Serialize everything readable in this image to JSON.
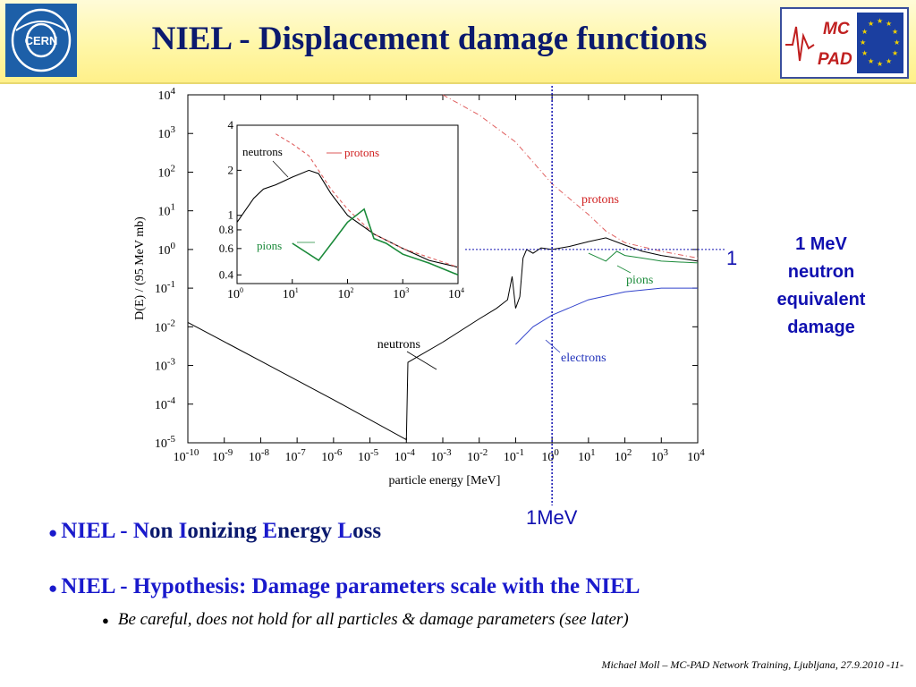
{
  "title": "NIEL - Displacement damage functions",
  "logos": {
    "cern": "CERN",
    "mc": "MC",
    "pad": "PAD"
  },
  "colors": {
    "title": "#0b1a6e",
    "accent": "#1a1acc",
    "neutrons": "#000000",
    "protons": "#e06060",
    "pions": "#1b8a3a",
    "electrons": "#3344cc",
    "marker": "#1010b0"
  },
  "chart_data": [
    {
      "type": "line",
      "xlabel": "particle energy [MeV]",
      "ylabel": "D(E) / (95 MeV mb)",
      "x_scale": "log",
      "y_scale": "log",
      "xlim": [
        1e-10,
        10000.0
      ],
      "ylim": [
        1e-05,
        10000.0
      ],
      "x_ticks": [
        "-10",
        "-9",
        "-8",
        "-7",
        "-6",
        "-5",
        "-4",
        "-3",
        "-2",
        "-1",
        "0",
        "1",
        "2",
        "3",
        "4"
      ],
      "y_ticks": [
        "4",
        "3",
        "2",
        "1",
        "0",
        "-1",
        "-2",
        "-3",
        "-4",
        "-5"
      ],
      "tick_base": "10",
      "series": [
        {
          "name": "neutrons",
          "points": [
            [
              1e-10,
              0.013
            ],
            [
              1e-08,
              0.0013
            ],
            [
              1e-06,
              0.00013
            ],
            [
              0.0001,
              1.2e-05
            ],
            [
              0.00011,
              0.0012
            ],
            [
              0.001,
              0.004
            ],
            [
              0.01,
              0.016
            ],
            [
              0.03,
              0.03
            ],
            [
              0.06,
              0.05
            ],
            [
              0.08,
              0.2
            ],
            [
              0.1,
              0.03
            ],
            [
              0.13,
              0.06
            ],
            [
              0.16,
              0.6
            ],
            [
              0.2,
              1
            ],
            [
              0.3,
              0.8
            ],
            [
              0.5,
              1.1
            ],
            [
              1,
              1
            ],
            [
              3,
              1.2
            ],
            [
              10,
              1.6
            ],
            [
              30,
              2
            ],
            [
              100,
              1.3
            ],
            [
              300,
              0.9
            ],
            [
              1000,
              0.7
            ],
            [
              10000,
              0.5
            ]
          ]
        },
        {
          "name": "protons",
          "points": [
            [
              0.001,
              10000.0
            ],
            [
              0.01,
              3000
            ],
            [
              0.1,
              600
            ],
            [
              1,
              50
            ],
            [
              10,
              8
            ],
            [
              30,
              3
            ],
            [
              100,
              1.5
            ],
            [
              1000,
              0.9
            ],
            [
              10000,
              0.6
            ]
          ]
        },
        {
          "name": "pions",
          "points": [
            [
              10,
              0.8
            ],
            [
              30,
              0.5
            ],
            [
              60,
              0.9
            ],
            [
              100,
              0.7
            ],
            [
              300,
              0.6
            ],
            [
              1000,
              0.5
            ],
            [
              10000,
              0.45
            ]
          ]
        },
        {
          "name": "electrons",
          "points": [
            [
              0.1,
              0.0035
            ],
            [
              0.3,
              0.01
            ],
            [
              1,
              0.02
            ],
            [
              10,
              0.05
            ],
            [
              100,
              0.08
            ],
            [
              1000,
              0.1
            ],
            [
              10000,
              0.1
            ]
          ]
        }
      ],
      "annotations": [
        "neutrons",
        "protons",
        "pions",
        "electrons"
      ],
      "reference_lines": {
        "x": 1,
        "y": 1
      }
    },
    {
      "type": "line",
      "xlim": [
        1,
        10000
      ],
      "ylim": [
        0.35,
        4
      ],
      "x_scale": "log",
      "y_scale": "log",
      "x_ticks": [
        "0",
        "1",
        "2",
        "3",
        "4"
      ],
      "y_ticks": [
        "4",
        "2",
        "1",
        "0.8",
        "0.6",
        "0.4"
      ],
      "tick_base": "10",
      "series": [
        {
          "name": "neutrons",
          "points": [
            [
              1,
              0.9
            ],
            [
              2,
              1.3
            ],
            [
              3,
              1.5
            ],
            [
              5,
              1.6
            ],
            [
              10,
              1.8
            ],
            [
              20,
              2
            ],
            [
              30,
              1.9
            ],
            [
              50,
              1.4
            ],
            [
              100,
              1.0
            ],
            [
              300,
              0.75
            ],
            [
              1000,
              0.6
            ],
            [
              3000,
              0.5
            ],
            [
              10000,
              0.45
            ]
          ]
        },
        {
          "name": "protons",
          "points": [
            [
              5,
              3.5
            ],
            [
              10,
              3
            ],
            [
              20,
              2.5
            ],
            [
              50,
              1.5
            ],
            [
              100,
              1.1
            ],
            [
              300,
              0.75
            ],
            [
              1000,
              0.6
            ],
            [
              10000,
              0.45
            ]
          ]
        },
        {
          "name": "pions",
          "points": [
            [
              10,
              0.65
            ],
            [
              30,
              0.5
            ],
            [
              60,
              0.7
            ],
            [
              100,
              0.9
            ],
            [
              200,
              1.1
            ],
            [
              300,
              0.7
            ],
            [
              500,
              0.65
            ],
            [
              1000,
              0.55
            ],
            [
              3000,
              0.48
            ],
            [
              10000,
              0.4
            ]
          ]
        }
      ],
      "annotations": [
        "neutrons",
        "protons",
        "pions"
      ]
    }
  ],
  "markers": {
    "one": "1",
    "mev": "1MeV",
    "equivalent": "1 MeV\nneutron\nequivalent\ndamage"
  },
  "bullets": {
    "b1_prefix": "NIEL - ",
    "b1_n": "N",
    "b1_on": "on ",
    "b1_i": "I",
    "b1_onizing": "onizing ",
    "b1_e": "E",
    "b1_nergy": "nergy ",
    "b1_l": "L",
    "b1_oss": "oss",
    "b2": "NIEL - Hypothesis: Damage parameters scale with the NIEL",
    "b3": "Be careful, does not hold for all particles & damage parameters  (see later)"
  },
  "footer": "Michael Moll – MC-PAD Network Training, Ljubljana, 27.9.2010    -11-"
}
